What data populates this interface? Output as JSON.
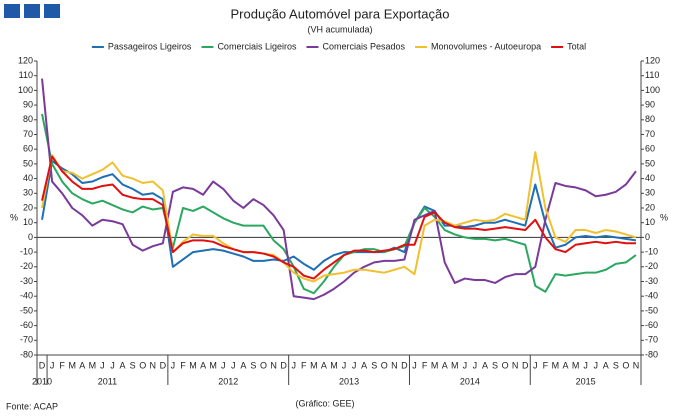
{
  "chart_data": {
    "type": "line",
    "title": "Produção Automóvel para Exportação",
    "subtitle": "(VH acumulada)",
    "ylabel": "%",
    "y2label": "%",
    "source": "Fonte: ACAP",
    "credit": "(Gráfico: GEE)",
    "categories": [
      "D",
      "J",
      "F",
      "M",
      "A",
      "M",
      "J",
      "J",
      "A",
      "S",
      "O",
      "N",
      "D",
      "J",
      "F",
      "M",
      "A",
      "M",
      "J",
      "J",
      "A",
      "S",
      "O",
      "N",
      "D",
      "J",
      "F",
      "M",
      "A",
      "M",
      "J",
      "J",
      "A",
      "S",
      "O",
      "N",
      "D",
      "J",
      "F",
      "M",
      "A",
      "M",
      "J",
      "J",
      "A",
      "S",
      "O",
      "N",
      "D",
      "J",
      "F",
      "M",
      "A",
      "M",
      "J",
      "J",
      "A",
      "S",
      "O",
      "N"
    ],
    "years": [
      "2010",
      "2011",
      "2012",
      "2013",
      "2014",
      "2015"
    ],
    "ylim": [
      -80,
      120
    ],
    "yticks": [
      -80,
      -70,
      -60,
      -50,
      -40,
      -30,
      -20,
      -10,
      0,
      10,
      20,
      30,
      40,
      50,
      60,
      70,
      80,
      90,
      100,
      110,
      120
    ],
    "y2lim": [
      -80,
      120
    ],
    "y2ticks": [
      -80,
      -70,
      -60,
      -50,
      -40,
      -30,
      -20,
      -10,
      0,
      10,
      20,
      30,
      40,
      50,
      60,
      70,
      80,
      90,
      100,
      110,
      120
    ],
    "legend": "top",
    "series": [
      {
        "name": "Passageiros Ligeiros",
        "color": "#1f6fb5",
        "values": [
          12,
          52,
          47,
          43,
          37,
          38,
          41,
          43,
          36,
          33,
          29,
          30,
          26,
          -20,
          -15,
          -10,
          -9,
          -8,
          -9,
          -11,
          -13,
          -16,
          -16,
          -15,
          -16,
          -13,
          -18,
          -22,
          -16,
          -12,
          -10,
          -10,
          -10,
          -10,
          -10,
          -7,
          -10,
          10,
          21,
          18,
          8,
          8,
          7,
          8,
          10,
          10,
          12,
          10,
          8,
          36,
          10,
          -7,
          -5,
          0,
          1,
          0,
          1,
          0,
          -1,
          -2
        ]
      },
      {
        "name": "Comerciais Ligeiros",
        "color": "#2aa860",
        "values": [
          84,
          50,
          38,
          30,
          26,
          23,
          25,
          22,
          19,
          17,
          21,
          19,
          20,
          -7,
          20,
          18,
          21,
          17,
          13,
          10,
          8,
          8,
          8,
          -2,
          -8,
          -20,
          -35,
          -38,
          -30,
          -20,
          -12,
          -10,
          -8,
          -8,
          -10,
          -8,
          -6,
          10,
          20,
          14,
          5,
          2,
          0,
          -1,
          -1,
          -2,
          -1,
          -3,
          -5,
          -33,
          -37,
          -25,
          -26,
          -25,
          -24,
          -24,
          -22,
          -18,
          -17,
          -12
        ]
      },
      {
        "name": "Comerciais Pesados",
        "color": "#7a3a9a",
        "values": [
          108,
          38,
          30,
          20,
          15,
          8,
          12,
          11,
          9,
          -5,
          -9,
          -6,
          -4,
          31,
          34,
          33,
          29,
          38,
          33,
          25,
          20,
          26,
          22,
          15,
          5,
          -40,
          -41,
          -42,
          -39,
          -35,
          -30,
          -24,
          -20,
          -17,
          -16,
          -16,
          -15,
          12,
          15,
          18,
          -17,
          -31,
          -28,
          -29,
          -29,
          -31,
          -27,
          -25,
          -25,
          -20,
          12,
          37,
          35,
          34,
          32,
          28,
          29,
          31,
          36,
          45
        ]
      },
      {
        "name": "Monovolumes - Autoeuropa",
        "color": "#f0c030",
        "values": [
          20,
          56,
          45,
          44,
          40,
          43,
          46,
          51,
          42,
          40,
          37,
          38,
          32,
          -10,
          -3,
          2,
          1,
          1,
          -4,
          -8,
          -10,
          -10,
          -11,
          -12,
          -17,
          -24,
          -28,
          -30,
          -26,
          -25,
          -24,
          -22,
          -22,
          -23,
          -24,
          -22,
          -20,
          -25,
          8,
          12,
          11,
          8,
          10,
          12,
          11,
          12,
          16,
          14,
          12,
          58,
          20,
          0,
          -3,
          5,
          5,
          3,
          5,
          4,
          2,
          0
        ]
      },
      {
        "name": "Total",
        "color": "#e01010",
        "values": [
          25,
          55,
          45,
          38,
          33,
          33,
          35,
          36,
          29,
          27,
          26,
          26,
          22,
          -10,
          -4,
          -2,
          -2,
          -3,
          -6,
          -8,
          -10,
          -10,
          -11,
          -13,
          -17,
          -20,
          -26,
          -28,
          -22,
          -17,
          -12,
          -9,
          -9,
          -10,
          -9,
          -8,
          -5,
          -5,
          14,
          17,
          10,
          7,
          6,
          6,
          5,
          6,
          7,
          6,
          5,
          12,
          0,
          -8,
          -10,
          -5,
          -4,
          -3,
          -4,
          -3,
          -4,
          -4
        ]
      }
    ]
  }
}
